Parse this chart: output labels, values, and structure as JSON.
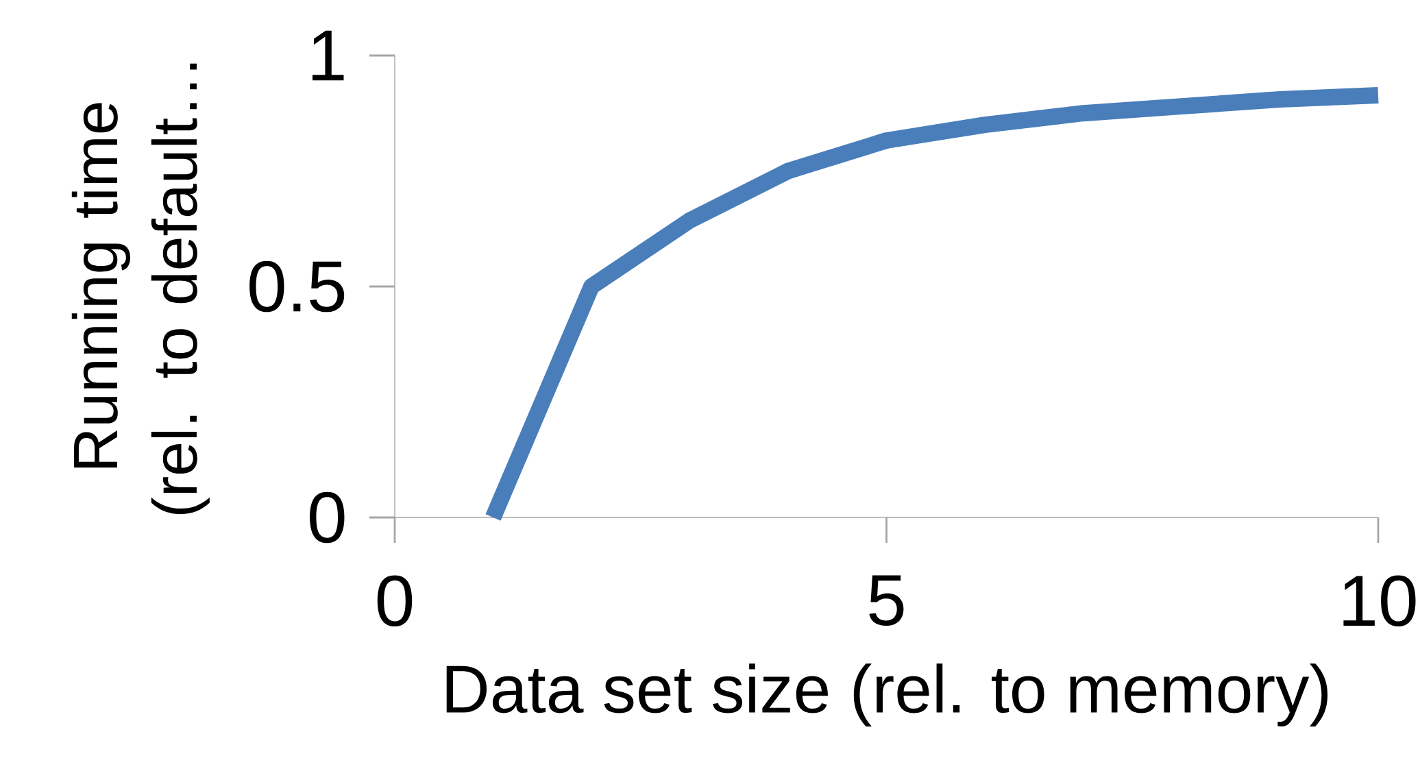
{
  "chart_data": {
    "type": "line",
    "xlabel": "Data set size (rel. to memory)",
    "ylabel": "Running time (rel. to default…",
    "x": [
      1,
      2,
      3,
      4,
      5,
      6,
      7,
      8,
      9,
      10
    ],
    "series": [
      {
        "color": "#4a7ebb",
        "values": [
          0,
          0.5,
          0.643,
          0.75,
          0.816,
          0.85,
          0.875,
          0.89,
          0.905,
          0.914
        ]
      }
    ],
    "xlim": [
      0,
      10
    ],
    "ylim": [
      0,
      1
    ],
    "xticks": [
      0,
      5,
      10
    ],
    "yticks": [
      0,
      0.5,
      1
    ],
    "grid": false,
    "marker": "none",
    "line_style": "solid"
  }
}
